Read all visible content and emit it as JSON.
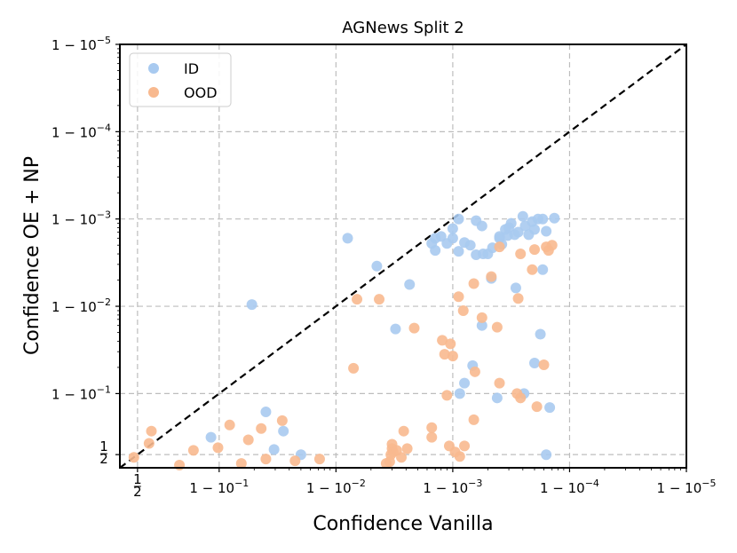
{
  "chart_data": {
    "type": "scatter",
    "title": "AGNews Split 2",
    "xlabel": "Confidence Vanilla",
    "ylabel": "Confidence OE + NP",
    "scale": "logit, shown as -log10(1 - confidence)",
    "xlim": [
      0.15,
      5.0
    ],
    "ylim": [
      0.15,
      5.0
    ],
    "grid": true,
    "legend_position": "top-left",
    "reference_line": {
      "label": "y = x",
      "style": "dashed",
      "color": "#000000"
    },
    "xticks": [
      {
        "value": 0.301,
        "label": "1/2"
      },
      {
        "value": 1,
        "label": "1 − 10^−1"
      },
      {
        "value": 2,
        "label": "1 − 10^−2"
      },
      {
        "value": 3,
        "label": "1 − 10^−3"
      },
      {
        "value": 4,
        "label": "1 − 10^−4"
      },
      {
        "value": 5,
        "label": "1 − 10^−5"
      }
    ],
    "yticks": [
      {
        "value": 0.301,
        "label": "1/2"
      },
      {
        "value": 1,
        "label": "1 − 10^−1"
      },
      {
        "value": 2,
        "label": "1 − 10^−2"
      },
      {
        "value": 3,
        "label": "1 − 10^−3"
      },
      {
        "value": 4,
        "label": "1 − 10^−4"
      },
      {
        "value": 5,
        "label": "1 − 10^−5"
      }
    ],
    "series": [
      {
        "name": "ID",
        "color": "#a8caf0",
        "points": [
          [
            0.93,
            0.5
          ],
          [
            1.4,
            0.79
          ],
          [
            1.55,
            0.57
          ],
          [
            1.7,
            0.3
          ],
          [
            1.47,
            0.36
          ],
          [
            2.51,
            1.74
          ],
          [
            2.63,
            2.25
          ],
          [
            3.06,
            1.0
          ],
          [
            3.1,
            1.12
          ],
          [
            3.17,
            1.32
          ],
          [
            3.25,
            1.78
          ],
          [
            3.38,
            0.95
          ],
          [
            3.61,
            1.0
          ],
          [
            3.7,
            1.35
          ],
          [
            3.75,
            1.68
          ],
          [
            3.83,
            0.84
          ],
          [
            3.8,
            0.3
          ],
          [
            3.33,
            2.32
          ],
          [
            3.54,
            2.21
          ],
          [
            3.77,
            2.42
          ],
          [
            2.35,
            2.46
          ],
          [
            1.28,
            2.02
          ],
          [
            2.1,
            2.78
          ],
          [
            2.82,
            2.72
          ],
          [
            2.85,
            2.78
          ],
          [
            2.9,
            2.8
          ],
          [
            3.0,
            2.78
          ],
          [
            3.05,
            2.63
          ],
          [
            3.1,
            2.73
          ],
          [
            3.15,
            2.7
          ],
          [
            3.2,
            2.59
          ],
          [
            3.26,
            2.6
          ],
          [
            3.3,
            2.6
          ],
          [
            3.34,
            2.67
          ],
          [
            3.4,
            2.8
          ],
          [
            3.42,
            2.71
          ],
          [
            3.47,
            2.81
          ],
          [
            3.5,
            2.95
          ],
          [
            3.53,
            2.82
          ],
          [
            3.56,
            2.85
          ],
          [
            3.6,
            3.03
          ],
          [
            3.62,
            2.92
          ],
          [
            3.65,
            2.82
          ],
          [
            3.68,
            2.97
          ],
          [
            3.7,
            2.88
          ],
          [
            3.73,
            3.0
          ],
          [
            3.77,
            3.0
          ],
          [
            3.8,
            2.86
          ],
          [
            3.87,
            3.01
          ],
          [
            3.0,
            2.89
          ],
          [
            3.05,
            3.0
          ],
          [
            3.2,
            2.98
          ],
          [
            3.25,
            2.92
          ],
          [
            3.4,
            2.78
          ],
          [
            3.45,
            2.88
          ],
          [
            3.48,
            2.9
          ],
          [
            2.85,
            2.64
          ],
          [
            2.95,
            2.72
          ]
        ]
      },
      {
        "name": "OOD",
        "color": "#f8b98f",
        "points": [
          [
            0.27,
            0.27
          ],
          [
            0.4,
            0.43
          ],
          [
            0.42,
            0.57
          ],
          [
            0.66,
            0.18
          ],
          [
            0.78,
            0.35
          ],
          [
            0.99,
            0.38
          ],
          [
            1.09,
            0.64
          ],
          [
            1.19,
            0.2
          ],
          [
            1.25,
            0.47
          ],
          [
            1.36,
            0.6
          ],
          [
            1.4,
            0.25
          ],
          [
            1.54,
            0.69
          ],
          [
            1.65,
            0.23
          ],
          [
            1.86,
            0.25
          ],
          [
            2.15,
            1.29
          ],
          [
            2.18,
            2.08
          ],
          [
            2.37,
            2.08
          ],
          [
            2.43,
            0.2
          ],
          [
            2.46,
            0.22
          ],
          [
            2.48,
            0.37
          ],
          [
            2.48,
            0.42
          ],
          [
            2.58,
            0.57
          ],
          [
            2.61,
            0.37
          ],
          [
            2.67,
            1.75
          ],
          [
            2.82,
            0.5
          ],
          [
            2.91,
            1.61
          ],
          [
            2.95,
            0.98
          ],
          [
            3.09,
            1.95
          ],
          [
            3.18,
            2.26
          ],
          [
            3.33,
            2.34
          ],
          [
            3.38,
            1.76
          ],
          [
            3.4,
            2.68
          ],
          [
            3.55,
            1.0
          ],
          [
            3.72,
            0.85
          ],
          [
            3.78,
            1.33
          ],
          [
            3.82,
            2.64
          ],
          [
            3.18,
            0.7
          ],
          [
            3.1,
            0.4
          ],
          [
            2.82,
            0.61
          ],
          [
            2.98,
            1.57
          ],
          [
            3.0,
            1.43
          ],
          [
            3.06,
            0.28
          ],
          [
            3.19,
            1.25
          ],
          [
            3.4,
            1.12
          ],
          [
            3.58,
            0.95
          ],
          [
            3.68,
            2.42
          ],
          [
            3.05,
            2.11
          ],
          [
            3.25,
            1.87
          ],
          [
            2.93,
            1.45
          ],
          [
            2.49,
            0.33
          ],
          [
            3.56,
            2.09
          ],
          [
            2.47,
            0.3
          ],
          [
            2.52,
            0.35
          ],
          [
            2.56,
            0.27
          ],
          [
            3.02,
            0.33
          ],
          [
            2.97,
            0.4
          ],
          [
            3.58,
            2.6
          ],
          [
            3.7,
            2.65
          ],
          [
            3.8,
            2.68
          ],
          [
            3.85,
            2.7
          ]
        ]
      }
    ]
  }
}
